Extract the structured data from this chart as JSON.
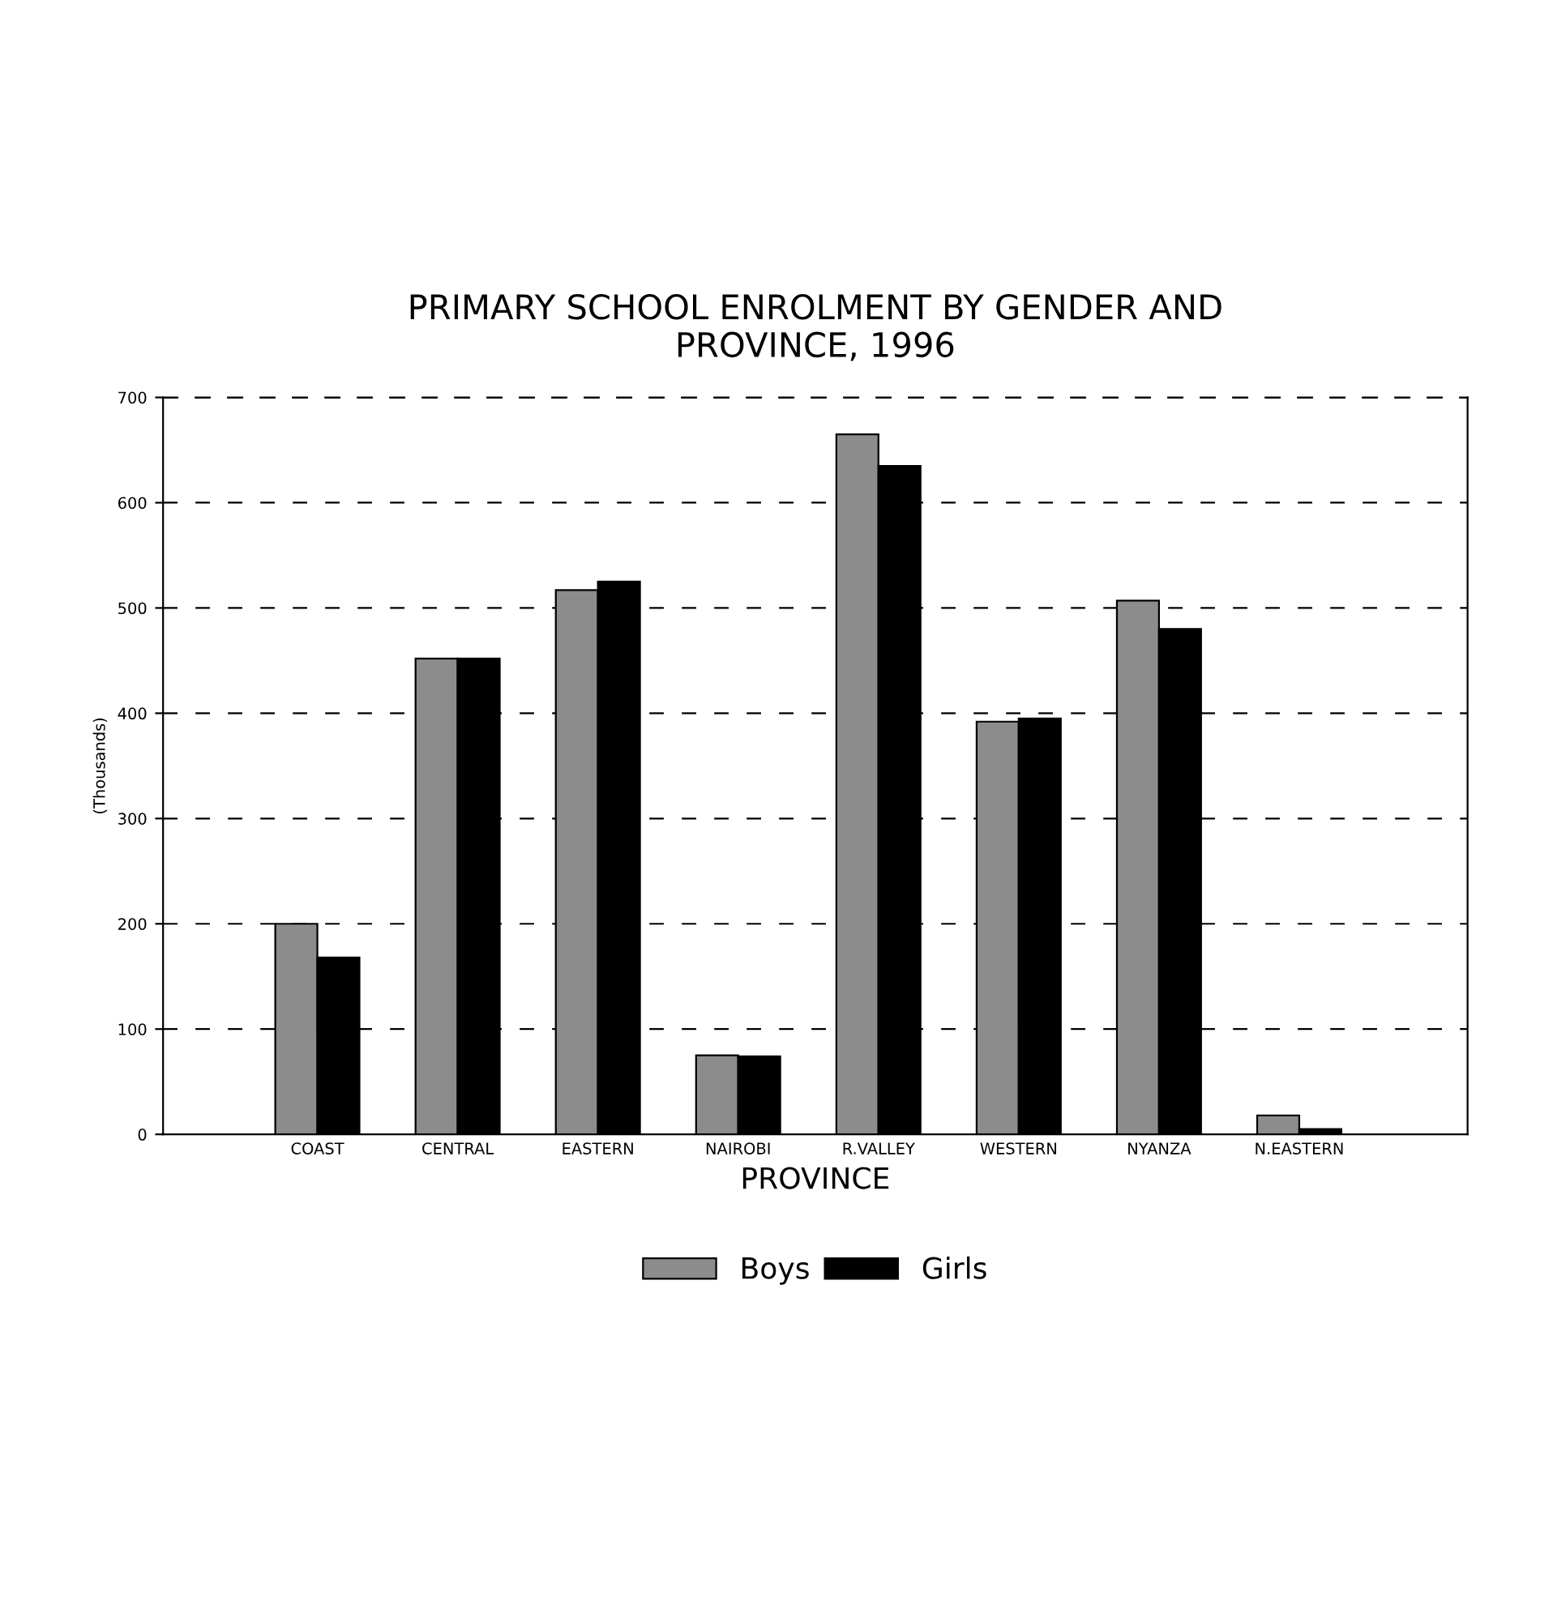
{
  "chart_data": {
    "type": "bar",
    "title": "PRIMARY SCHOOL ENROLMENT BY GENDER AND\nPROVINCE, 1996",
    "xlabel": "PROVINCE",
    "ylabel": "(Thousands)",
    "categories": [
      "COAST",
      "CENTRAL",
      "EASTERN",
      "NAIROBI",
      "R.VALLEY",
      "WESTERN",
      "NYANZA",
      "N.EASTERN"
    ],
    "series": [
      {
        "name": "Boys",
        "color": "#8c8c8c",
        "values": [
          200,
          452,
          517,
          75,
          665,
          392,
          507,
          18
        ]
      },
      {
        "name": "Girls",
        "color": "#000000",
        "values": [
          168,
          452,
          525,
          74,
          635,
          395,
          480,
          5
        ]
      }
    ],
    "ylim": [
      0,
      700
    ],
    "yticks": [
      0,
      100,
      200,
      300,
      400,
      500,
      600,
      700
    ],
    "grid": "y",
    "legend": "bottom"
  }
}
